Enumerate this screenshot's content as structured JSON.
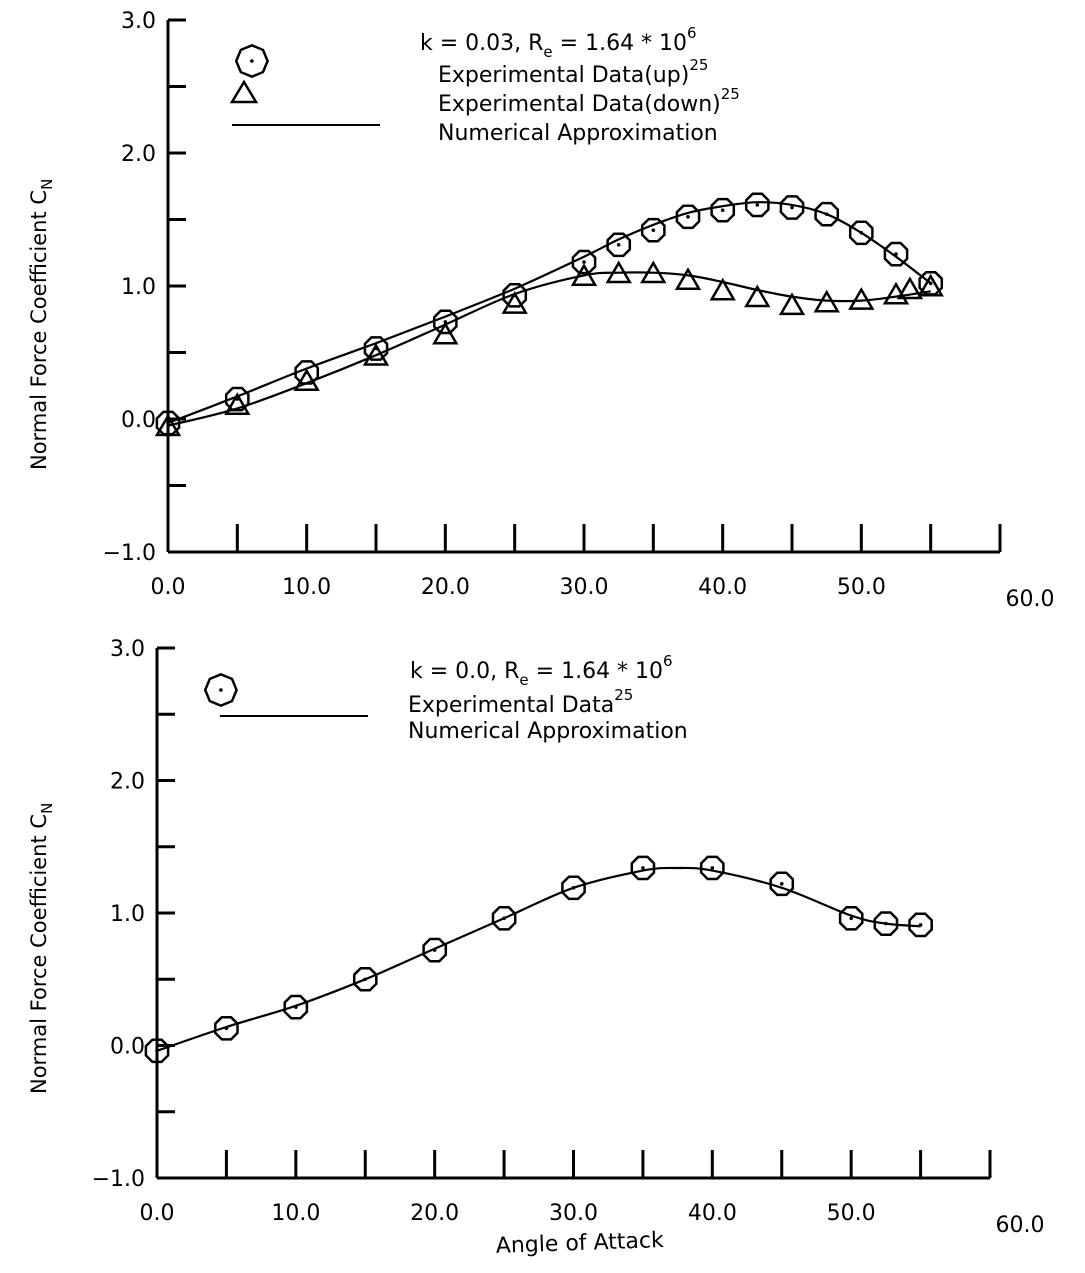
{
  "chart_data": [
    {
      "type": "line",
      "xlabel": "",
      "ylabel": "Normal Force Coefficient",
      "ylabel_sub": "N",
      "ylabel_symbol": "C",
      "xlim": [
        0,
        60
      ],
      "ylim": [
        -1,
        3
      ],
      "x_ticks": [
        0,
        5,
        10,
        15,
        20,
        25,
        30,
        35,
        40,
        45,
        50,
        55,
        60
      ],
      "x_tick_labels": [
        "0.0",
        "10.0",
        "20.0",
        "30.0",
        "40.0",
        "50.0",
        "60.0"
      ],
      "y_ticks": [
        -1,
        -0.5,
        0,
        0.5,
        1,
        1.5,
        2,
        2.5,
        3
      ],
      "y_tick_labels": [
        "-1.0",
        "0.0",
        "1.0",
        "2.0",
        "3.0"
      ],
      "grid": false,
      "legend_position": "top",
      "annotation": {
        "main": "k = 0.03, R",
        "sub": "e",
        "rest": " = 1.64 * 10",
        "sup": "6"
      },
      "series": [
        {
          "name": "Experimental Data(up)",
          "sup": "25",
          "marker": "octagon-dot",
          "x": [
            0,
            5,
            10,
            15,
            20,
            25,
            30,
            32.5,
            35,
            37.5,
            40,
            42.5,
            45,
            47.5,
            50,
            52.5,
            55
          ],
          "y": [
            -0.03,
            0.15,
            0.35,
            0.53,
            0.73,
            0.93,
            1.18,
            1.31,
            1.42,
            1.52,
            1.57,
            1.61,
            1.59,
            1.54,
            1.4,
            1.24,
            1.02
          ]
        },
        {
          "name": "Experimental Data(down)",
          "sup": "25",
          "marker": "triangle",
          "x": [
            0,
            5,
            10,
            15,
            20,
            25,
            30,
            32.5,
            35,
            37.5,
            40,
            42.5,
            45,
            47.5,
            50,
            52.5,
            53.5,
            55
          ],
          "y": [
            -0.06,
            0.1,
            0.28,
            0.47,
            0.63,
            0.86,
            1.07,
            1.09,
            1.09,
            1.04,
            0.96,
            0.91,
            0.85,
            0.87,
            0.89,
            0.93,
            0.97,
            0.99
          ]
        },
        {
          "name": "Numerical Approximation",
          "marker": "line",
          "x": [
            0,
            5,
            10,
            15,
            20,
            25,
            30,
            32.5,
            35,
            37.5,
            40,
            42.5,
            45,
            47.5,
            50,
            52.5,
            55
          ],
          "y": [
            -0.03,
            0.17,
            0.38,
            0.57,
            0.77,
            0.98,
            1.22,
            1.35,
            1.46,
            1.55,
            1.6,
            1.63,
            1.61,
            1.54,
            1.4,
            1.22,
            1.02
          ],
          "y_down": [
            -0.05,
            0.08,
            0.27,
            0.48,
            0.71,
            0.94,
            1.08,
            1.1,
            1.1,
            1.08,
            1.03,
            0.97,
            0.92,
            0.89,
            0.89,
            0.92,
            0.96
          ]
        }
      ]
    },
    {
      "type": "line",
      "xlabel": "Angle of Attack",
      "ylabel": "Normal Force Coefficient",
      "ylabel_sub": "N",
      "ylabel_symbol": "C",
      "xlim": [
        0,
        60
      ],
      "ylim": [
        -1,
        3
      ],
      "x_ticks": [
        0,
        5,
        10,
        15,
        20,
        25,
        30,
        35,
        40,
        45,
        50,
        55,
        60
      ],
      "x_tick_labels": [
        "0.0",
        "10.0",
        "20.0",
        "30.0",
        "40.0",
        "50.0",
        "60.0"
      ],
      "y_ticks": [
        -1,
        -0.5,
        0,
        0.5,
        1,
        1.5,
        2,
        2.5,
        3
      ],
      "y_tick_labels": [
        "-1.0",
        "0.0",
        "1.0",
        "2.0",
        "3.0"
      ],
      "grid": false,
      "legend_position": "top",
      "annotation": {
        "main": "k = 0.0, R",
        "sub": "e",
        "rest": " = 1.64 * 10",
        "sup": "6"
      },
      "series": [
        {
          "name": "Experimental Data",
          "sup": "25",
          "marker": "octagon-dot",
          "x": [
            0,
            5,
            10,
            15,
            20,
            25,
            30,
            35,
            40,
            45,
            50,
            52.5,
            55
          ],
          "y": [
            -0.04,
            0.13,
            0.29,
            0.5,
            0.72,
            0.96,
            1.19,
            1.34,
            1.34,
            1.22,
            0.96,
            0.92,
            0.91
          ]
        },
        {
          "name": "Numerical Approximation",
          "marker": "line",
          "x": [
            0,
            5,
            10,
            15,
            20,
            25,
            30,
            35,
            37.5,
            40,
            45,
            50,
            52.5,
            55
          ],
          "y": [
            -0.04,
            0.14,
            0.3,
            0.5,
            0.73,
            0.96,
            1.19,
            1.32,
            1.34,
            1.32,
            1.19,
            0.98,
            0.92,
            0.9
          ]
        }
      ]
    }
  ]
}
